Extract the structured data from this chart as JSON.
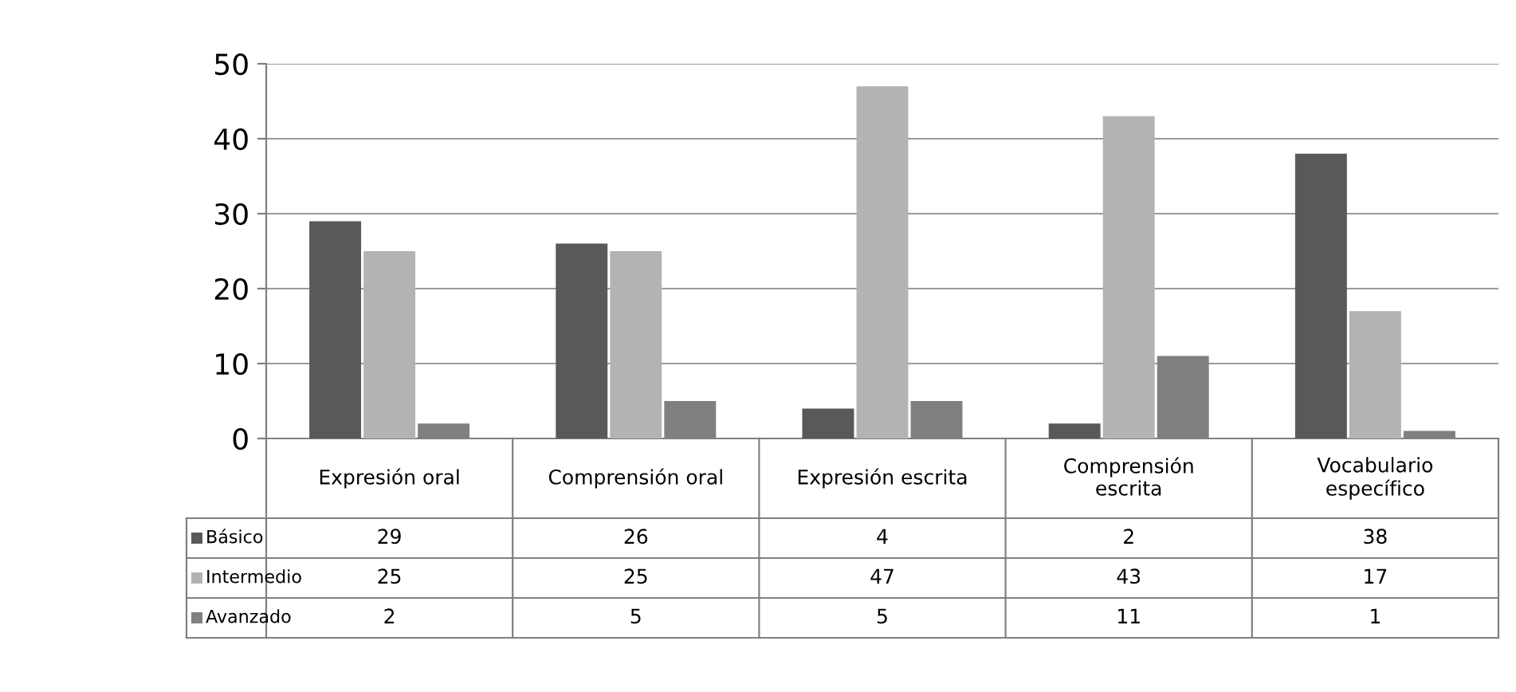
{
  "chart_data": {
    "type": "bar",
    "categories": [
      "Expresión oral",
      "Comprensión oral",
      "Expresión escrita",
      "Comprensión escrita",
      "Vocabulario específico"
    ],
    "series": [
      {
        "name": "Básico",
        "color": "#595959",
        "values": [
          29,
          26,
          4,
          2,
          38
        ]
      },
      {
        "name": "Intermedio",
        "color": "#b3b3b3",
        "values": [
          25,
          25,
          47,
          43,
          17
        ]
      },
      {
        "name": "Avanzado",
        "color": "#808080",
        "values": [
          2,
          5,
          5,
          11,
          1
        ]
      }
    ],
    "ylim": [
      0,
      50
    ],
    "yticks": [
      0,
      10,
      20,
      30,
      40,
      50
    ],
    "grid": "y",
    "legend": "bottom left",
    "data_labels": true
  }
}
